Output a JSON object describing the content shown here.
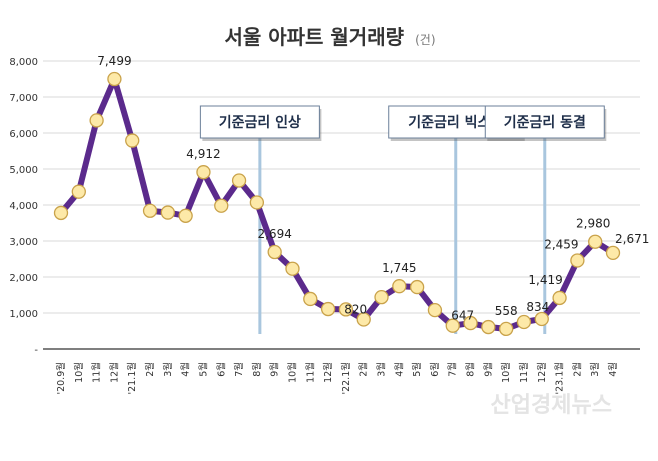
{
  "chart_data": {
    "type": "line",
    "title": "서울 아파트 월거래량",
    "unit": "(건)",
    "categories": [
      "'20.9월",
      "10월",
      "11월",
      "12월",
      "'21.1월",
      "2월",
      "3월",
      "4월",
      "5월",
      "6월",
      "7월",
      "8월",
      "9월",
      "10월",
      "11월",
      "12월",
      "'22.1월",
      "2월",
      "3월",
      "4월",
      "5월",
      "6월",
      "7월",
      "8월",
      "9월",
      "10월",
      "11월",
      "12월",
      "'23.1월",
      "2월",
      "3월",
      "4월"
    ],
    "values": [
      3780,
      4370,
      6350,
      7499,
      5790,
      3840,
      3790,
      3700,
      4912,
      3980,
      4680,
      4070,
      2694,
      2230,
      1390,
      1110,
      1100,
      820,
      1440,
      1745,
      1720,
      1080,
      647,
      720,
      610,
      558,
      750,
      834,
      1419,
      2459,
      2980,
      2671
    ],
    "data_labels": {
      "3": "7,499",
      "8": "4,912",
      "12": "2,694",
      "17": "820",
      "19": "1,745",
      "22": "647",
      "25": "558",
      "27": "834",
      "28": "1,419",
      "29": "2,459",
      "30": "2,980",
      "31": "2,671"
    },
    "ylim": [
      0,
      8000
    ],
    "y_ticks": [
      {
        "value": 8000,
        "label": "8,000"
      },
      {
        "value": 7000,
        "label": "7,000"
      },
      {
        "value": 6000,
        "label": "6,000"
      },
      {
        "value": 5000,
        "label": "5,000"
      },
      {
        "value": 4000,
        "label": "4,000"
      },
      {
        "value": 3000,
        "label": "3,000"
      },
      {
        "value": 2000,
        "label": "2,000"
      },
      {
        "value": 1000,
        "label": "1,000"
      },
      {
        "value": 0,
        "label": "-"
      }
    ],
    "grid": true,
    "annotations": [
      {
        "category_index": 11,
        "label": "기준금리 인상"
      },
      {
        "category_index": 22,
        "label": "기준금리 빅스텝"
      },
      {
        "category_index": 27,
        "label": "기준금리 동결"
      }
    ],
    "colors": {
      "line": "#5b2a8c",
      "marker_fill": "#fde9a8",
      "marker_stroke": "#c9a24a",
      "annotation_line": "#a9c6de",
      "grid": "#d9d9d9"
    }
  },
  "watermark": "산업경제뉴스"
}
